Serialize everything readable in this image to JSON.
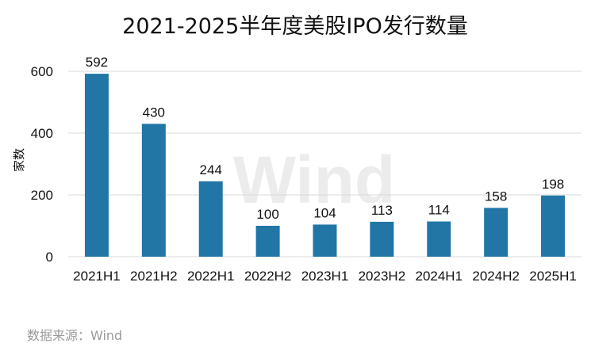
{
  "chart_data": {
    "type": "bar",
    "title": "2021-2025半年度美股IPO发行数量",
    "categories": [
      "2021H1",
      "2021H2",
      "2022H1",
      "2022H2",
      "2023H1",
      "2023H2",
      "2024H1",
      "2024H2",
      "2025H1"
    ],
    "values": [
      592,
      430,
      244,
      100,
      104,
      113,
      114,
      158,
      198
    ],
    "xlabel": "",
    "ylabel": "家数",
    "ylim": [
      0,
      600
    ],
    "yticks": [
      0,
      200,
      400,
      600
    ],
    "grid": true,
    "bar_color": "#2176a6",
    "grid_color": "#d9d9d9"
  },
  "watermark": "Wind",
  "source": "数据来源：Wind"
}
